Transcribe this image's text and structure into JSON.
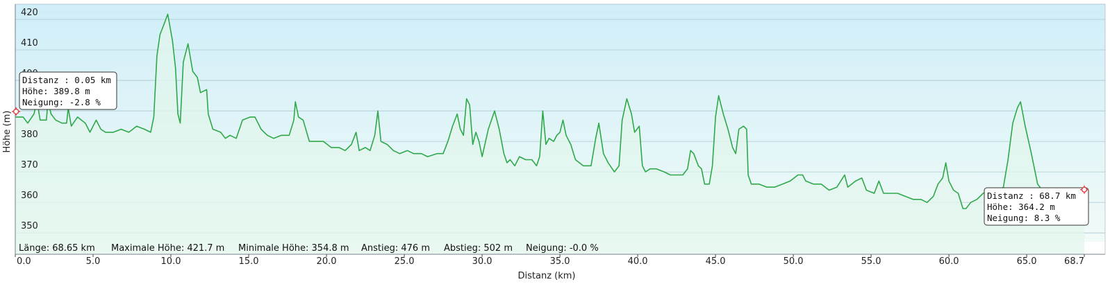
{
  "chart_data": {
    "type": "area",
    "xlabel": "Distanz (km)",
    "ylabel": "Höhe (m)",
    "xlim": [
      0,
      68.7
    ],
    "ylim": [
      343,
      425
    ],
    "x_ticks": [
      "0.0",
      "5.0",
      "10.0",
      "15.0",
      "20.0",
      "25.0",
      "30.0",
      "35.0",
      "40.0",
      "45.0",
      "50.0",
      "55.0",
      "60.0",
      "65.0",
      "68.7"
    ],
    "y_ticks": [
      "350",
      "360",
      "370",
      "380",
      "390",
      "400",
      "410",
      "420"
    ],
    "grid": true,
    "series": [
      {
        "points": [
          [
            0.0,
            388
          ],
          [
            0.5,
            388
          ],
          [
            0.8,
            386
          ],
          [
            1.2,
            389
          ],
          [
            1.4,
            393
          ],
          [
            1.6,
            387
          ],
          [
            2.0,
            387
          ],
          [
            2.1,
            393
          ],
          [
            2.3,
            389
          ],
          [
            2.6,
            387
          ],
          [
            3.0,
            386
          ],
          [
            3.3,
            386
          ],
          [
            3.4,
            391
          ],
          [
            3.6,
            385
          ],
          [
            4.0,
            388
          ],
          [
            4.5,
            386
          ],
          [
            4.8,
            383
          ],
          [
            5.2,
            387
          ],
          [
            5.5,
            384
          ],
          [
            5.8,
            383
          ],
          [
            6.3,
            383
          ],
          [
            6.8,
            384
          ],
          [
            7.3,
            383
          ],
          [
            7.8,
            385
          ],
          [
            8.3,
            384
          ],
          [
            8.7,
            383
          ],
          [
            8.9,
            388
          ],
          [
            9.1,
            408
          ],
          [
            9.3,
            415
          ],
          [
            9.6,
            419
          ],
          [
            9.8,
            421.7
          ],
          [
            10.1,
            413
          ],
          [
            10.3,
            404
          ],
          [
            10.45,
            389
          ],
          [
            10.6,
            386
          ],
          [
            10.8,
            406
          ],
          [
            11.1,
            412
          ],
          [
            11.4,
            403
          ],
          [
            11.7,
            401
          ],
          [
            11.9,
            396
          ],
          [
            12.3,
            397
          ],
          [
            12.4,
            389
          ],
          [
            12.7,
            384
          ],
          [
            13.2,
            383
          ],
          [
            13.5,
            381
          ],
          [
            13.8,
            382
          ],
          [
            14.2,
            381
          ],
          [
            14.6,
            387
          ],
          [
            15.1,
            388
          ],
          [
            15.4,
            388
          ],
          [
            15.8,
            384
          ],
          [
            16.2,
            382
          ],
          [
            16.6,
            381
          ],
          [
            17.1,
            382
          ],
          [
            17.6,
            382
          ],
          [
            17.9,
            387
          ],
          [
            18.0,
            393
          ],
          [
            18.2,
            388
          ],
          [
            18.5,
            387
          ],
          [
            18.9,
            380
          ],
          [
            19.3,
            380
          ],
          [
            19.8,
            380
          ],
          [
            20.3,
            378
          ],
          [
            20.8,
            378
          ],
          [
            21.2,
            377
          ],
          [
            21.6,
            379
          ],
          [
            21.9,
            383
          ],
          [
            22.1,
            377
          ],
          [
            22.5,
            378
          ],
          [
            22.8,
            377
          ],
          [
            23.1,
            382
          ],
          [
            23.3,
            390
          ],
          [
            23.5,
            380
          ],
          [
            23.9,
            379
          ],
          [
            24.3,
            377
          ],
          [
            24.7,
            376
          ],
          [
            25.2,
            377
          ],
          [
            25.6,
            376
          ],
          [
            26.1,
            376
          ],
          [
            26.5,
            375
          ],
          [
            27.1,
            376
          ],
          [
            27.5,
            376
          ],
          [
            27.8,
            380
          ],
          [
            28.1,
            385
          ],
          [
            28.4,
            389
          ],
          [
            28.6,
            384
          ],
          [
            28.8,
            382
          ],
          [
            29.0,
            394
          ],
          [
            29.2,
            392
          ],
          [
            29.4,
            379
          ],
          [
            29.6,
            383
          ],
          [
            29.8,
            380
          ],
          [
            30.0,
            375
          ],
          [
            30.4,
            384
          ],
          [
            30.8,
            390
          ],
          [
            31.1,
            384
          ],
          [
            31.4,
            376
          ],
          [
            31.6,
            373
          ],
          [
            31.8,
            374
          ],
          [
            32.1,
            372
          ],
          [
            32.4,
            375
          ],
          [
            32.8,
            374
          ],
          [
            33.2,
            374
          ],
          [
            33.5,
            372
          ],
          [
            33.7,
            375
          ],
          [
            33.9,
            390
          ],
          [
            34.1,
            379
          ],
          [
            34.3,
            381
          ],
          [
            34.6,
            380
          ],
          [
            34.8,
            382
          ],
          [
            35.0,
            383
          ],
          [
            35.2,
            387
          ],
          [
            35.4,
            382
          ],
          [
            35.7,
            379
          ],
          [
            36.0,
            374
          ],
          [
            36.5,
            372
          ],
          [
            36.8,
            372
          ],
          [
            37.0,
            372
          ],
          [
            37.3,
            381
          ],
          [
            37.5,
            386
          ],
          [
            37.8,
            376
          ],
          [
            38.1,
            373
          ],
          [
            38.5,
            370
          ],
          [
            38.8,
            372
          ],
          [
            39.0,
            387
          ],
          [
            39.3,
            394
          ],
          [
            39.6,
            389
          ],
          [
            39.8,
            383
          ],
          [
            40.1,
            385
          ],
          [
            40.3,
            372
          ],
          [
            40.5,
            370
          ],
          [
            40.8,
            371
          ],
          [
            41.2,
            371
          ],
          [
            41.7,
            370
          ],
          [
            42.1,
            369
          ],
          [
            42.6,
            369
          ],
          [
            42.9,
            369
          ],
          [
            43.2,
            371
          ],
          [
            43.4,
            377
          ],
          [
            43.6,
            376
          ],
          [
            43.9,
            372
          ],
          [
            44.1,
            371
          ],
          [
            44.3,
            366
          ],
          [
            44.6,
            366
          ],
          [
            44.8,
            372
          ],
          [
            45.0,
            388
          ],
          [
            45.2,
            395
          ],
          [
            45.5,
            389
          ],
          [
            45.8,
            384
          ],
          [
            46.1,
            378
          ],
          [
            46.3,
            376
          ],
          [
            46.5,
            384
          ],
          [
            46.8,
            385
          ],
          [
            47.0,
            384
          ],
          [
            47.1,
            369
          ],
          [
            47.3,
            366
          ],
          [
            47.8,
            366
          ],
          [
            48.3,
            365
          ],
          [
            48.8,
            365
          ],
          [
            49.3,
            366
          ],
          [
            49.8,
            367
          ],
          [
            50.3,
            369
          ],
          [
            50.6,
            369
          ],
          [
            50.8,
            367
          ],
          [
            51.3,
            366
          ],
          [
            51.8,
            366
          ],
          [
            52.3,
            364
          ],
          [
            52.8,
            365
          ],
          [
            53.3,
            369
          ],
          [
            53.5,
            365
          ],
          [
            54.0,
            367
          ],
          [
            54.4,
            368
          ],
          [
            54.7,
            364
          ],
          [
            55.2,
            363
          ],
          [
            55.5,
            367
          ],
          [
            55.8,
            363
          ],
          [
            56.2,
            363
          ],
          [
            56.7,
            363
          ],
          [
            57.2,
            362
          ],
          [
            57.7,
            361
          ],
          [
            58.2,
            361
          ],
          [
            58.6,
            360
          ],
          [
            59.0,
            362
          ],
          [
            59.3,
            366
          ],
          [
            59.6,
            368
          ],
          [
            59.8,
            373
          ],
          [
            60.0,
            367
          ],
          [
            60.3,
            364
          ],
          [
            60.6,
            363
          ],
          [
            60.9,
            358
          ],
          [
            61.1,
            358
          ],
          [
            61.4,
            360
          ],
          [
            61.8,
            361
          ],
          [
            62.2,
            363
          ],
          [
            62.5,
            364
          ],
          [
            62.8,
            363
          ],
          [
            63.2,
            364
          ],
          [
            63.5,
            365
          ],
          [
            63.8,
            374
          ],
          [
            64.1,
            386
          ],
          [
            64.4,
            391
          ],
          [
            64.6,
            393
          ],
          [
            64.9,
            385
          ],
          [
            65.3,
            376
          ],
          [
            65.7,
            366
          ],
          [
            66.0,
            364
          ],
          [
            66.3,
            362
          ],
          [
            66.7,
            362
          ],
          [
            67.1,
            361
          ],
          [
            67.5,
            360
          ],
          [
            67.9,
            359
          ],
          [
            68.2,
            358
          ],
          [
            68.4,
            360
          ],
          [
            68.55,
            362
          ],
          [
            68.7,
            364.2
          ]
        ]
      }
    ],
    "stats": {
      "length": "Länge: 68.65 km",
      "max_height": "Maximale Höhe: 421.7 m",
      "min_height": "Minimale Höhe: 354.8 m",
      "ascent": "Anstieg: 476 m",
      "descent": "Abstieg: 502 m",
      "slope": "Neigung: -0.0 %"
    },
    "tooltips": [
      {
        "x": 0.05,
        "y": 389.8,
        "lines": [
          "Distanz  : 0.05 km",
          "Höhe: 389.8 m",
          "Neigung: -2.8 %"
        ]
      },
      {
        "x": 68.7,
        "y": 364.2,
        "lines": [
          "Distanz  : 68.7 km",
          "Höhe: 364.2 m",
          "Neigung: 8.3 %"
        ]
      }
    ],
    "colors": {
      "line": "#2ea84a",
      "fill": "#e2f6ec",
      "bg_top": "#d0eef8",
      "bg_bottom": "#f2fbf7",
      "grid": "#a8c7d2",
      "marker": "#e0393e"
    }
  }
}
